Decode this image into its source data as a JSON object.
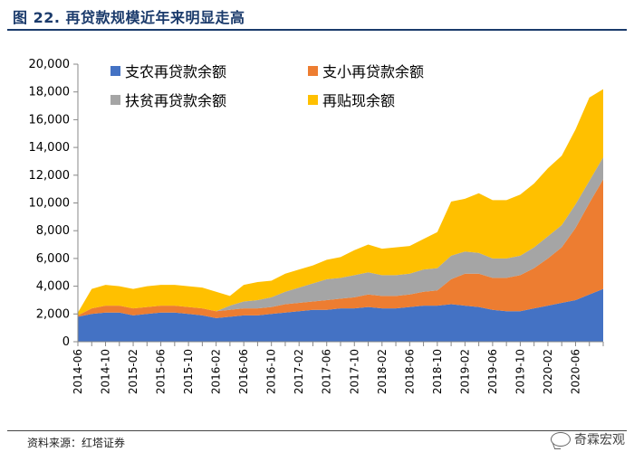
{
  "title": "图 22. 再贷款规模近年来明显走高",
  "source": "资料来源：红塔证券",
  "watermark": "奇霖宏观",
  "colors": {
    "support_agri": "#4472C4",
    "support_small": "#ED7D31",
    "poverty": "#A5A5A5",
    "rediscount": "#FFC000"
  },
  "chart_data": {
    "type": "area",
    "stacked": true,
    "ylim": [
      0,
      20000
    ],
    "yticks": [
      0,
      2000,
      4000,
      6000,
      8000,
      10000,
      12000,
      14000,
      16000,
      18000,
      20000
    ],
    "ytick_labels": [
      "0",
      "2,000",
      "4,000",
      "6,000",
      "8,000",
      "10,000",
      "12,000",
      "14,000",
      "16,000",
      "18,000",
      "20,000"
    ],
    "xtick_labels": [
      "2014-06",
      "2014-10",
      "2015-02",
      "2015-06",
      "2015-10",
      "2016-02",
      "2016-06",
      "2016-10",
      "2017-02",
      "2017-06",
      "2017-10",
      "2018-02",
      "2018-06",
      "2018-10",
      "2019-02",
      "2019-06",
      "2019-10",
      "2020-02",
      "2020-06"
    ],
    "legend_position": "top-left",
    "x": [
      "2014-06",
      "2014-08",
      "2014-10",
      "2014-12",
      "2015-02",
      "2015-04",
      "2015-06",
      "2015-08",
      "2015-10",
      "2015-12",
      "2016-02",
      "2016-04",
      "2016-06",
      "2016-08",
      "2016-10",
      "2016-12",
      "2017-02",
      "2017-04",
      "2017-06",
      "2017-08",
      "2017-10",
      "2017-12",
      "2018-02",
      "2018-04",
      "2018-06",
      "2018-08",
      "2018-10",
      "2018-12",
      "2019-02",
      "2019-04",
      "2019-06",
      "2019-08",
      "2019-10",
      "2019-12",
      "2020-02",
      "2020-04",
      "2020-06",
      "2020-08",
      "2020-10"
    ],
    "series": [
      {
        "name": "支农再贷款余额",
        "color_key": "support_agri",
        "values": [
          1800,
          2000,
          2100,
          2100,
          1900,
          2000,
          2100,
          2100,
          2000,
          1900,
          1700,
          1800,
          1900,
          1900,
          2000,
          2100,
          2200,
          2300,
          2300,
          2400,
          2400,
          2500,
          2400,
          2400,
          2500,
          2600,
          2600,
          2700,
          2600,
          2500,
          2300,
          2200,
          2200,
          2400,
          2600,
          2800,
          3000,
          3400,
          3800
        ]
      },
      {
        "name": "支小再贷款余额",
        "color_key": "support_small",
        "values": [
          100,
          400,
          500,
          500,
          500,
          500,
          500,
          500,
          500,
          500,
          500,
          500,
          500,
          500,
          500,
          600,
          600,
          600,
          700,
          700,
          800,
          900,
          900,
          900,
          900,
          1000,
          1100,
          1800,
          2300,
          2400,
          2300,
          2400,
          2600,
          2900,
          3400,
          4000,
          5200,
          6600,
          7900
        ]
      },
      {
        "name": "扶贫再贷款余额",
        "color_key": "poverty",
        "values": [
          0,
          0,
          0,
          0,
          0,
          0,
          0,
          0,
          0,
          0,
          0,
          300,
          500,
          600,
          700,
          900,
          1100,
          1300,
          1500,
          1500,
          1600,
          1600,
          1500,
          1500,
          1500,
          1600,
          1600,
          1700,
          1600,
          1500,
          1400,
          1400,
          1400,
          1500,
          1600,
          1600,
          1700,
          1600,
          1600
        ]
      },
      {
        "name": "再贴现余额",
        "color_key": "rediscount",
        "values": [
          200,
          1400,
          1500,
          1400,
          1400,
          1500,
          1500,
          1500,
          1500,
          1500,
          1400,
          700,
          1200,
          1300,
          1200,
          1300,
          1300,
          1300,
          1400,
          1500,
          1800,
          2000,
          1900,
          2000,
          2000,
          2200,
          2600,
          3900,
          3800,
          4300,
          4200,
          4200,
          4400,
          4600,
          4900,
          5000,
          5400,
          6000,
          4900
        ]
      }
    ]
  }
}
